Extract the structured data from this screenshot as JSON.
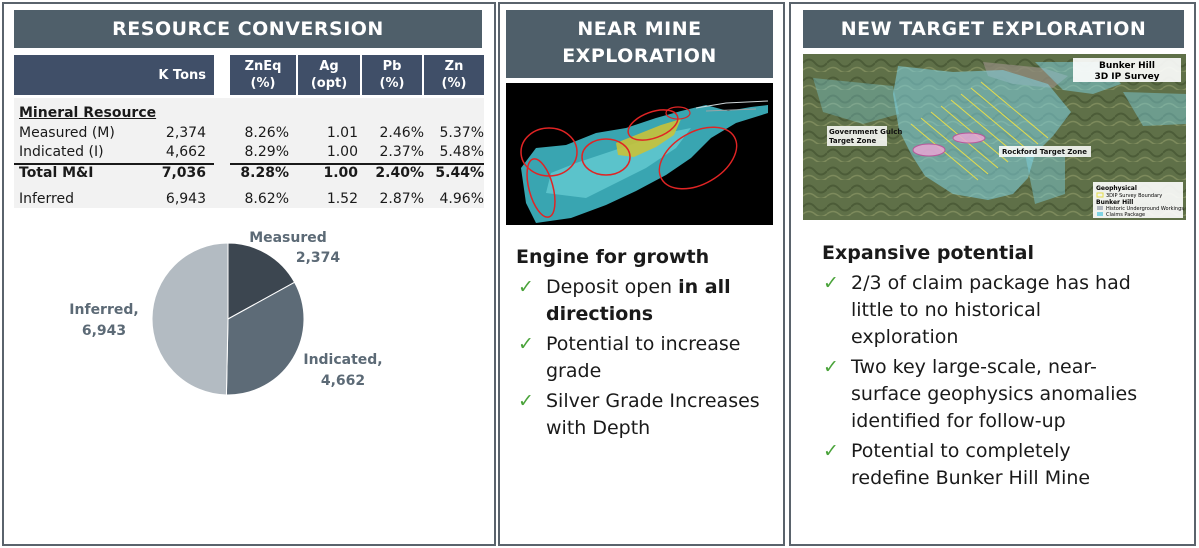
{
  "panel1": {
    "title": "RESOURCE CONVERSION",
    "headers": [
      "K Tons",
      "ZnEq\n(%)",
      "Ag\n(opt)",
      "Pb\n(%)",
      "Zn\n(%)"
    ],
    "section_label": "Mineral Resource",
    "rows": [
      {
        "label": "Measured (M)",
        "ktons": "2,374",
        "zneq": "8.26%",
        "ag": "1.01",
        "pb": "2.46%",
        "zn": "5.37%"
      },
      {
        "label": "Indicated (I)",
        "ktons": "4,662",
        "zneq": "8.29%",
        "ag": "1.00",
        "pb": "2.37%",
        "zn": "5.48%"
      },
      {
        "label": "Total M&I",
        "ktons": "7,036",
        "zneq": "8.28%",
        "ag": "1.00",
        "pb": "2.40%",
        "zn": "5.44%"
      },
      {
        "label": "Inferred",
        "ktons": "6,943",
        "zneq": "8.62%",
        "ag": "1.52",
        "pb": "2.87%",
        "zn": "4.96%"
      }
    ]
  },
  "chart_data": {
    "type": "pie",
    "title": "",
    "slices": [
      {
        "name": "Measured",
        "value": 2374,
        "value_label": "2,374",
        "color": "#3c4650"
      },
      {
        "name": "Indicated,",
        "value": 4662,
        "value_label": "4,662",
        "color": "#5d6b77"
      },
      {
        "name": "Inferred,",
        "value": 6943,
        "value_label": "6,943",
        "color": "#b3bbc2"
      }
    ]
  },
  "panel2": {
    "title_line1": "NEAR MINE",
    "title_line2": "EXPLORATION",
    "heading": "Engine for growth",
    "b1_pre": "Deposit open ",
    "b1_bold": "in all directions",
    "b2": "Potential to increase grade",
    "b3": "Silver Grade Increases with Depth"
  },
  "panel3": {
    "title": "NEW TARGET EXPLORATION",
    "map_title1": "Bunker Hill",
    "map_title2": "3D IP Survey",
    "map_gulch1": "Government Gulch",
    "map_gulch2": "Target Zone",
    "map_rockford": "Rockford Target Zone",
    "legend_geo": "Geophysical",
    "legend_geo_item": "3DIP Survey Boundary",
    "legend_bh": "Bunker Hill",
    "legend_bh_item1": "Historic Underground Workings",
    "legend_bh_item2": "Claims Package",
    "heading": "Expansive potential",
    "b1": "2/3 of claim package has had little to no historical exploration",
    "b2": "Two key large-scale, near-surface geophysics anomalies identified for follow-up",
    "b3": "Potential to completely redefine Bunker Hill Mine"
  },
  "check_glyph": "✓"
}
